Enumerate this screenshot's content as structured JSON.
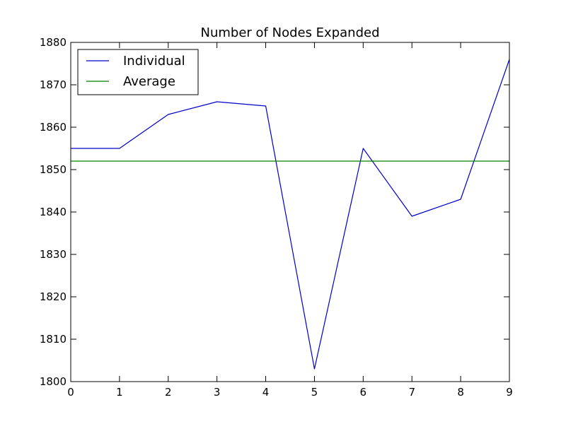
{
  "chart_data": {
    "type": "line",
    "title": "Number of Nodes Expanded",
    "xlabel": "",
    "ylabel": "",
    "x": [
      0,
      1,
      2,
      3,
      4,
      5,
      6,
      7,
      8,
      9
    ],
    "xlim": [
      0,
      9
    ],
    "ylim": [
      1800,
      1880
    ],
    "xticks": [
      0,
      1,
      2,
      3,
      4,
      5,
      6,
      7,
      8,
      9
    ],
    "yticks": [
      1800,
      1810,
      1820,
      1830,
      1840,
      1850,
      1860,
      1870,
      1880
    ],
    "grid": false,
    "legend_position": "top-left",
    "series": [
      {
        "name": "Individual",
        "color": "#0000cc",
        "values": [
          1855,
          1855,
          1863,
          1866,
          1865,
          1803,
          1855,
          1839,
          1843,
          1876
        ]
      },
      {
        "name": "Average",
        "color": "#008000",
        "values": [
          1852,
          1852,
          1852,
          1852,
          1852,
          1852,
          1852,
          1852,
          1852,
          1852
        ]
      }
    ]
  }
}
